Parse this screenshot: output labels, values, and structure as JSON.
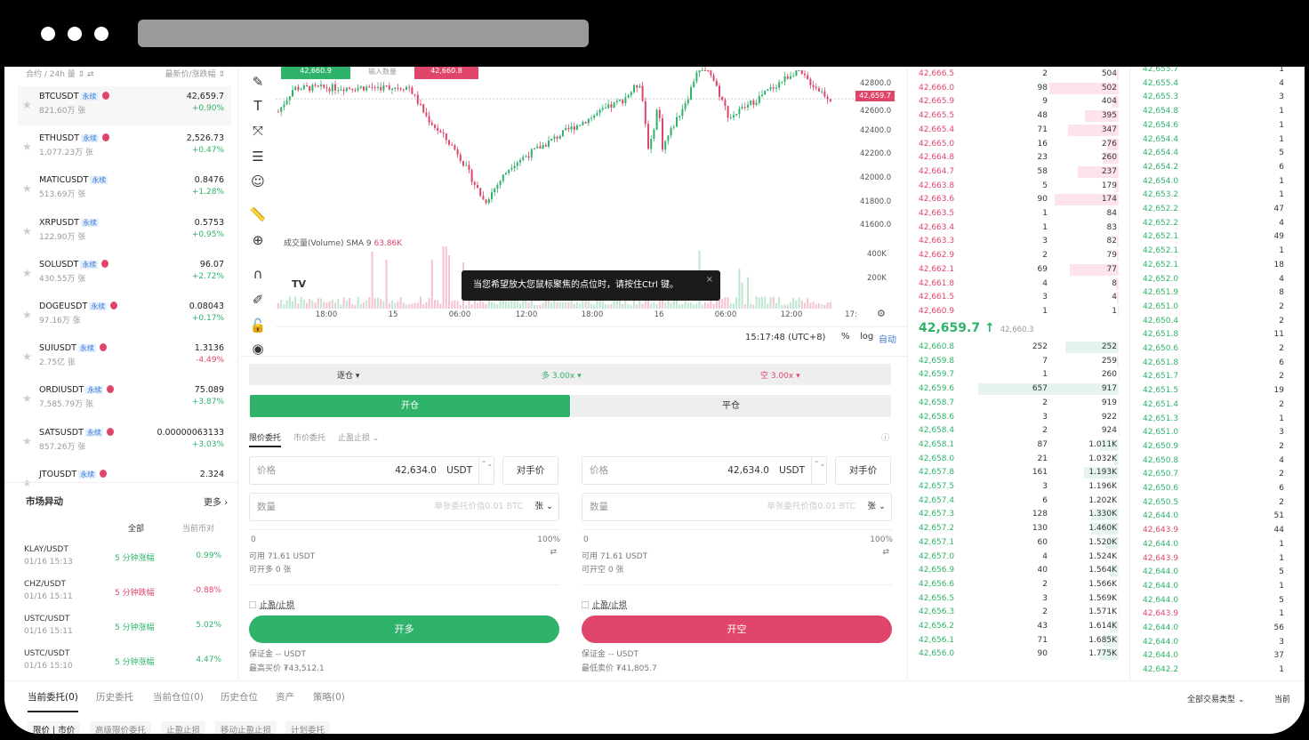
{
  "window": {
    "controls": [
      "close",
      "minimize",
      "maximize"
    ]
  },
  "market_list": {
    "header_left": "合约 / 24h 量 ⇕ ⇄",
    "header_right": "最新价/涨跌幅 ⇕",
    "items": [
      {
        "symbol": "BTCUSDT",
        "tag": "永续",
        "hot": true,
        "volume": "821.60万 张",
        "price": "42,659.7",
        "change": "+0.90%",
        "dir": "up"
      },
      {
        "symbol": "ETHUSDT",
        "tag": "永续",
        "hot": true,
        "volume": "1,077.23万 张",
        "price": "2,526.73",
        "change": "+0.47%",
        "dir": "up"
      },
      {
        "symbol": "MATICUSDT",
        "tag": "永续",
        "hot": false,
        "volume": "513.69万 张",
        "price": "0.8476",
        "change": "+1.28%",
        "dir": "up"
      },
      {
        "symbol": "XRPUSDT",
        "tag": "永续",
        "hot": false,
        "volume": "122.90万 张",
        "price": "0.5753",
        "change": "+0.95%",
        "dir": "up"
      },
      {
        "symbol": "SOLUSDT",
        "tag": "永续",
        "hot": true,
        "volume": "430.55万 张",
        "price": "96.07",
        "change": "+2.72%",
        "dir": "up"
      },
      {
        "symbol": "DOGEUSDT",
        "tag": "永续",
        "hot": true,
        "volume": "97.16万 张",
        "price": "0.08043",
        "change": "+0.17%",
        "dir": "up"
      },
      {
        "symbol": "SUIUSDT",
        "tag": "永续",
        "hot": true,
        "volume": "2.75亿 张",
        "price": "1.3136",
        "change": "-4.49%",
        "dir": "down"
      },
      {
        "symbol": "ORDIUSDT",
        "tag": "永续",
        "hot": true,
        "volume": "7,585.79万 张",
        "price": "75.089",
        "change": "+3.87%",
        "dir": "up"
      },
      {
        "symbol": "SATSUSDT",
        "tag": "永续",
        "hot": true,
        "volume": "857.26万 张",
        "price": "0.00000063133",
        "change": "+3.03%",
        "dir": "up"
      },
      {
        "symbol": "JTOUSDT",
        "tag": "永续",
        "hot": true,
        "volume": "",
        "price": "2.324",
        "change": "",
        "dir": "up"
      }
    ]
  },
  "movers": {
    "title": "市场异动",
    "more": "更多 ›",
    "filter": "全部",
    "current_only": "当前币对",
    "items": [
      {
        "pair": "KLAY/USDT",
        "time": "01/16 15:13",
        "type": "5 分钟涨幅",
        "value": "0.99%",
        "dir": "up"
      },
      {
        "pair": "CHZ/USDT",
        "time": "01/16 15:11",
        "type": "5 分钟跌幅",
        "value": "-0.88%",
        "dir": "down"
      },
      {
        "pair": "USTC/USDT",
        "time": "01/16 15:11",
        "type": "5 分钟涨幅",
        "value": "5.02%",
        "dir": "up"
      },
      {
        "pair": "USTC/USDT",
        "time": "01/16 15:10",
        "type": "5 分钟涨幅",
        "value": "4.47%",
        "dir": "up"
      }
    ]
  },
  "chart": {
    "buy_price": "42,660.9",
    "qty_placeholder": "输入数量",
    "sell_price": "42,660.8",
    "price_axis": [
      "42800.0",
      "42400.0",
      "42200.0",
      "42000.0",
      "41800.0",
      "41600.0"
    ],
    "price_axis_hidden": "42600.0",
    "last_price_label": "42,659.7",
    "volume_label": "成交量(Volume) SMA 9",
    "volume_sma": "63.86K",
    "volume_axis": [
      "400K",
      "200K"
    ],
    "time_axis": [
      "18:00",
      "15",
      "06:00",
      "12:00",
      "18:00",
      "16",
      "06:00",
      "12:00",
      "17:"
    ],
    "tooltip": "当您希望放大您鼠标聚焦的点位时，请按住Ctrl 键。",
    "clock": "15:17:48 (UTC+8)",
    "percent": "%",
    "log": "log",
    "auto": "自动",
    "logo": "TV",
    "colors": {
      "up": "#2fb36a",
      "down": "#e0466a"
    }
  },
  "form": {
    "margin_mode": "逐仓 ▾",
    "long_leverage": "多 3.00x ▾",
    "short_leverage": "空 3.00x ▾",
    "open": "开仓",
    "close": "平仓",
    "order_types": [
      "限价委托",
      "市价委托",
      "止盈止损 ⌄"
    ],
    "price_label": "价格",
    "price_value": "42,634.0",
    "unit": "USDT",
    "counter_price": "对手价",
    "qty_label": "数量",
    "qty_placeholder": "单张委托价值0.01 BTC",
    "qty_unit": "张 ⌄",
    "slider_min": "0",
    "slider_max": "100%",
    "available": "可用 71.61 USDT",
    "can_long": "可开多 0 张",
    "can_short": "可开空 0 张",
    "tpsl": "止盈/止损",
    "buy_btn": "开多",
    "sell_btn": "开空",
    "margin": "保证金 -- USDT",
    "long_liq": "最高买价 ₮43,512.1",
    "short_liq": "最低卖价 ₮41,805.7"
  },
  "orderbook": {
    "asks": [
      [
        "42,666.5",
        "2",
        "504"
      ],
      [
        "42,666.0",
        "98",
        "502"
      ],
      [
        "42,665.9",
        "9",
        "404"
      ],
      [
        "42,665.5",
        "48",
        "395"
      ],
      [
        "42,665.4",
        "71",
        "347"
      ],
      [
        "42,665.0",
        "16",
        "276"
      ],
      [
        "42,664.8",
        "23",
        "260"
      ],
      [
        "42,664.7",
        "58",
        "237"
      ],
      [
        "42,663.8",
        "5",
        "179"
      ],
      [
        "42,663.6",
        "90",
        "174"
      ],
      [
        "42,663.5",
        "1",
        "84"
      ],
      [
        "42,663.4",
        "1",
        "83"
      ],
      [
        "42,663.3",
        "3",
        "82"
      ],
      [
        "42,662.9",
        "2",
        "79"
      ],
      [
        "42,662.1",
        "69",
        "77"
      ],
      [
        "42,661.8",
        "4",
        "8"
      ],
      [
        "42,661.5",
        "3",
        "4"
      ],
      [
        "42,660.9",
        "1",
        "1"
      ]
    ],
    "last": "42,659.7 ↑",
    "mark": "42,660.3",
    "bids": [
      [
        "42,660.8",
        "252",
        "252"
      ],
      [
        "42,659.8",
        "7",
        "259"
      ],
      [
        "42,659.7",
        "1",
        "260"
      ],
      [
        "42,659.6",
        "657",
        "917"
      ],
      [
        "42,658.7",
        "2",
        "919"
      ],
      [
        "42,658.6",
        "3",
        "922"
      ],
      [
        "42,658.4",
        "2",
        "924"
      ],
      [
        "42,658.1",
        "87",
        "1.011K"
      ],
      [
        "42,658.0",
        "21",
        "1.032K"
      ],
      [
        "42,657.8",
        "161",
        "1.193K"
      ],
      [
        "42,657.5",
        "3",
        "1.196K"
      ],
      [
        "42,657.4",
        "6",
        "1.202K"
      ],
      [
        "42,657.3",
        "128",
        "1.330K"
      ],
      [
        "42,657.2",
        "130",
        "1.460K"
      ],
      [
        "42,657.1",
        "60",
        "1.520K"
      ],
      [
        "42,657.0",
        "4",
        "1.524K"
      ],
      [
        "42,656.9",
        "40",
        "1.564K"
      ],
      [
        "42,656.6",
        "2",
        "1.566K"
      ],
      [
        "42,656.5",
        "3",
        "1.569K"
      ],
      [
        "42,656.3",
        "2",
        "1.571K"
      ],
      [
        "42,656.2",
        "43",
        "1.614K"
      ],
      [
        "42,656.1",
        "71",
        "1.685K"
      ],
      [
        "42,656.0",
        "90",
        "1.775K"
      ]
    ]
  },
  "trades": [
    [
      "42,655.7",
      "1",
      "up"
    ],
    [
      "42,655.4",
      "4",
      "up"
    ],
    [
      "42,655.3",
      "3",
      "up"
    ],
    [
      "42,654.8",
      "1",
      "up"
    ],
    [
      "42,654.6",
      "1",
      "up"
    ],
    [
      "42,654.4",
      "1",
      "up"
    ],
    [
      "42,654.4",
      "5",
      "up"
    ],
    [
      "42,654.2",
      "6",
      "up"
    ],
    [
      "42,654.0",
      "1",
      "up"
    ],
    [
      "42,653.2",
      "1",
      "up"
    ],
    [
      "42,652.2",
      "47",
      "up"
    ],
    [
      "42,652.2",
      "4",
      "up"
    ],
    [
      "42,652.1",
      "49",
      "up"
    ],
    [
      "42,652.1",
      "1",
      "up"
    ],
    [
      "42,652.1",
      "18",
      "up"
    ],
    [
      "42,652.0",
      "4",
      "up"
    ],
    [
      "42,651.9",
      "8",
      "up"
    ],
    [
      "42,651.0",
      "2",
      "up"
    ],
    [
      "42,650.4",
      "2",
      "up"
    ],
    [
      "42,651.8",
      "11",
      "up"
    ],
    [
      "42,650.6",
      "2",
      "up"
    ],
    [
      "42,651.8",
      "6",
      "up"
    ],
    [
      "42,651.7",
      "2",
      "up"
    ],
    [
      "42,651.5",
      "19",
      "up"
    ],
    [
      "42,651.4",
      "2",
      "up"
    ],
    [
      "42,651.3",
      "1",
      "up"
    ],
    [
      "42,651.0",
      "3",
      "up"
    ],
    [
      "42,650.9",
      "2",
      "up"
    ],
    [
      "42,650.8",
      "4",
      "up"
    ],
    [
      "42,650.7",
      "2",
      "up"
    ],
    [
      "42,650.6",
      "6",
      "up"
    ],
    [
      "42,650.5",
      "2",
      "up"
    ],
    [
      "42,644.0",
      "51",
      "up"
    ],
    [
      "42,643.9",
      "44",
      "down"
    ],
    [
      "42,644.0",
      "1",
      "up"
    ],
    [
      "42,643.9",
      "1",
      "down"
    ],
    [
      "42,644.0",
      "5",
      "up"
    ],
    [
      "42,644.0",
      "1",
      "up"
    ],
    [
      "42,644.0",
      "5",
      "up"
    ],
    [
      "42,643.9",
      "1",
      "down"
    ],
    [
      "42,644.0",
      "56",
      "up"
    ],
    [
      "42,644.0",
      "3",
      "up"
    ],
    [
      "42,644.0",
      "37",
      "up"
    ],
    [
      "42,642.2",
      "1",
      "up"
    ]
  ],
  "bottom": {
    "tabs": [
      "当前委托(0)",
      "历史委托",
      "当前仓位(0)",
      "历史仓位",
      "资产",
      "策略(0)"
    ],
    "subtabs": [
      "限价 | 市价",
      "高级限价委托",
      "止盈止损",
      "移动止盈止损",
      "计划委托"
    ],
    "filter": "全部交易类型 ⌄",
    "current": "当前"
  }
}
